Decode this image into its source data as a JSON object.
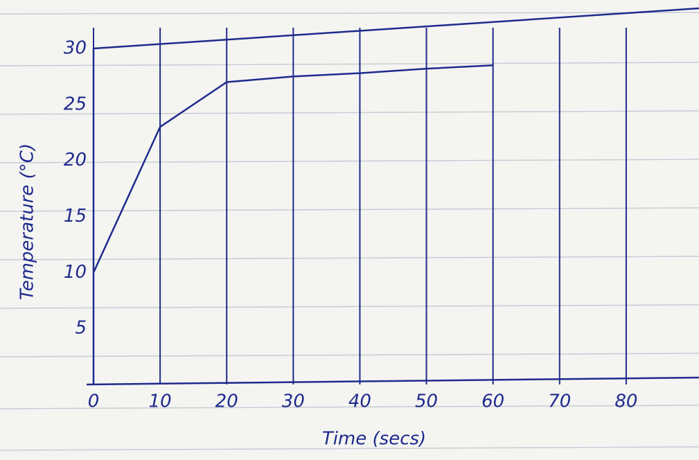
{
  "chart_data": {
    "type": "line",
    "xlabel": "Time (secs)",
    "ylabel": "Temperature (°C)",
    "x": [
      0,
      10,
      20,
      30,
      40,
      50,
      60
    ],
    "values": [
      10,
      23,
      27,
      27.5,
      27.8,
      28.2,
      28.5
    ],
    "color": "#1e2a8c",
    "xlim": [
      0,
      90
    ],
    "xticks": [
      0,
      10,
      20,
      30,
      40,
      50,
      60,
      70,
      80
    ],
    "ylim": [
      0,
      30
    ],
    "yticks": [
      5,
      10,
      15,
      20,
      25,
      30
    ],
    "grid": true
  }
}
